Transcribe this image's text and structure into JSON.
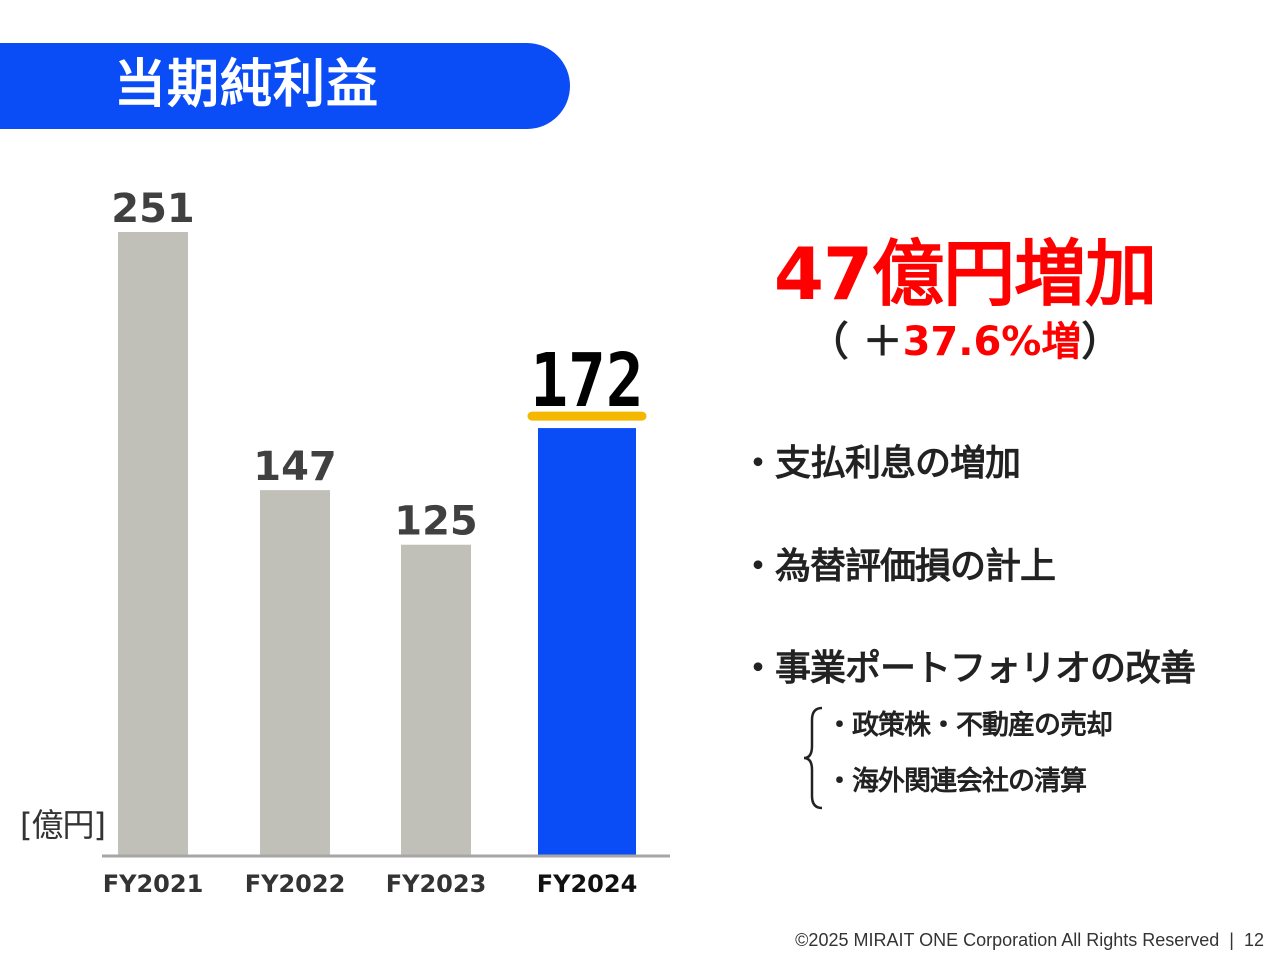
{
  "title": "当期純利益",
  "chart_data": {
    "type": "bar",
    "categories": [
      "FY2021",
      "FY2022",
      "FY2023",
      "FY2024"
    ],
    "values": [
      251,
      147,
      125,
      172
    ],
    "ylim": [
      0,
      251
    ],
    "unit": "[億円]",
    "highlight_index": 3,
    "colors": {
      "default_bar": "#c0c0b8",
      "highlight_bar": "#0a4cf5",
      "highlight_underline": "#f5b800",
      "axis": "#a6a6a6",
      "label": "#404040"
    }
  },
  "summary": {
    "headline": "47億円増加",
    "sub_prefix": "（ ＋",
    "sub_value": "37.6%増",
    "sub_suffix": "）"
  },
  "bullets": [
    "・支払利息の増加",
    "・為替評価損の計上",
    "・事業ポートフォリオの改善"
  ],
  "sub_bullets": [
    "・政策株・不動産の売却",
    "・海外関連会社の清算"
  ],
  "footer": {
    "copyright": "©2025 MIRAIT ONE Corporation All Rights Reserved",
    "separator": "|",
    "page": "12"
  }
}
